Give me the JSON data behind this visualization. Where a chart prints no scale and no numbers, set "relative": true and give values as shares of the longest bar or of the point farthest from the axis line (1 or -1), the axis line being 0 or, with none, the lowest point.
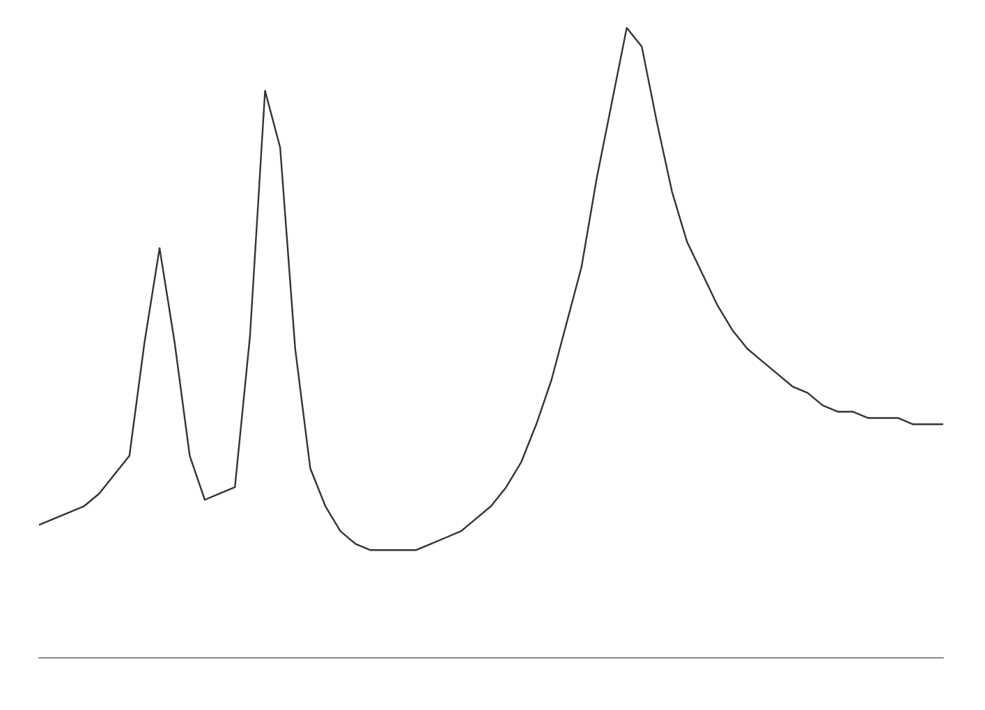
{
  "chart_data": {
    "type": "line",
    "relative": true,
    "color": "#333333",
    "categories": [
      null,
      null,
      null,
      null,
      null,
      null,
      null,
      null,
      null,
      null,
      null,
      null,
      null,
      null,
      null,
      null,
      null,
      null,
      null,
      null,
      null,
      null,
      null,
      null,
      null,
      null,
      null,
      null,
      null,
      null,
      null,
      null,
      null,
      null,
      null,
      null,
      null,
      null,
      null,
      null,
      null,
      null,
      null,
      null,
      null,
      null,
      null,
      null,
      null,
      null,
      null,
      null,
      null,
      null,
      null,
      null,
      null,
      null,
      null,
      null,
      null
    ],
    "values": [
      0.21,
      0.22,
      0.23,
      0.24,
      0.26,
      0.29,
      0.32,
      0.5,
      0.65,
      0.5,
      0.32,
      0.25,
      0.26,
      0.27,
      0.51,
      0.9,
      0.81,
      0.49,
      0.3,
      0.24,
      0.2,
      0.18,
      0.17,
      0.17,
      0.17,
      0.17,
      0.18,
      0.19,
      0.2,
      0.22,
      0.24,
      0.27,
      0.31,
      0.37,
      0.44,
      0.53,
      0.62,
      0.76,
      0.88,
      1,
      0.97,
      0.85,
      0.74,
      0.66,
      0.61,
      0.56,
      0.52,
      0.49,
      0.47,
      0.45,
      0.43,
      0.42,
      0.4,
      0.39,
      0.39,
      0.38,
      0.38,
      0.38,
      0.37,
      0.37,
      0.37
    ]
  }
}
